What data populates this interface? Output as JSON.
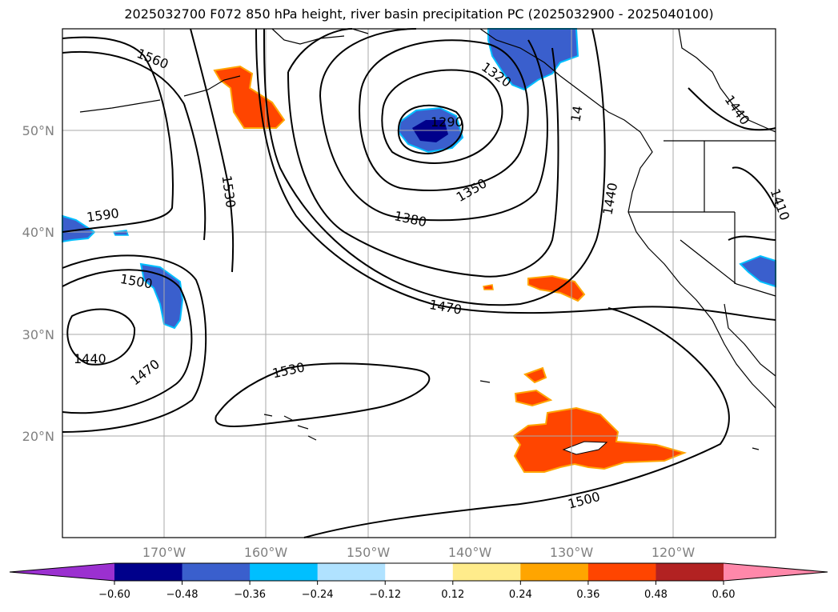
{
  "title": "2025032700 F072 850 hPa height, river basin precipitation PC (2025032900 - 2025040100)",
  "map": {
    "lat_labels": [
      "50°N",
      "40°N",
      "30°N",
      "20°N"
    ],
    "lon_labels": [
      "170°W",
      "160°W",
      "150°W",
      "140°W",
      "130°W",
      "120°W"
    ],
    "contour_labels": [
      {
        "text": "1560"
      },
      {
        "text": "1590"
      },
      {
        "text": "1530"
      },
      {
        "text": "1500"
      },
      {
        "text": "1440"
      },
      {
        "text": "1470"
      },
      {
        "text": "1530"
      },
      {
        "text": "1290"
      },
      {
        "text": "1320"
      },
      {
        "text": "1350"
      },
      {
        "text": "1380"
      },
      {
        "text": "1470"
      },
      {
        "text": "1440"
      },
      {
        "text": "14"
      },
      {
        "text": "1440"
      },
      {
        "text": "1410"
      },
      {
        "text": "1500"
      }
    ]
  },
  "colorbar": {
    "ticks": [
      "−0.60",
      "−0.48",
      "−0.36",
      "−0.24",
      "−0.12",
      "0.12",
      "0.24",
      "0.36",
      "0.48",
      "0.60"
    ],
    "colors": [
      "#9b30d0",
      "#00008b",
      "#3a5fcd",
      "#00bfff",
      "#b0e2ff",
      "#ffffff",
      "#ffec8b",
      "#ffa500",
      "#ff4500",
      "#b22222",
      "#ff88aa"
    ]
  }
}
